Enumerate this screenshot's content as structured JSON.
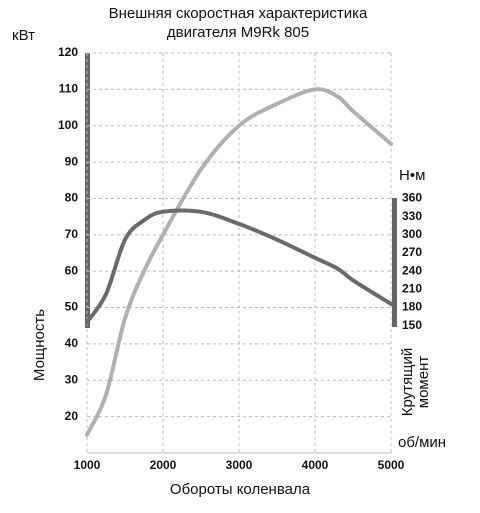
{
  "chart_data": {
    "type": "line",
    "title": [
      "Внешняя скоростная характеристика",
      "двигателя M9Rk 805"
    ],
    "y_unit": "кВт",
    "y2_unit": "Н•м",
    "x_unit": "об/мин",
    "xlabel": "Обороты коленвала",
    "ylabel": "Мощность",
    "y2label": [
      "Крутящий",
      "момент"
    ],
    "x": [
      1000,
      1250,
      1500,
      1750,
      2000,
      2500,
      3000,
      3500,
      4000,
      4300,
      4500,
      5000
    ],
    "series": [
      {
        "color": "#b0b0b0",
        "values": [
          15,
          26,
          47,
          60,
          70,
          88,
          100,
          106,
          110,
          108,
          104,
          95
        ]
      },
      {
        "color": "#6a6a6a",
        "axis": "y2",
        "values": [
          156,
          202,
          292,
          324,
          338,
          338,
          318,
          292,
          262,
          244,
          225,
          186
        ]
      }
    ],
    "xlim": [
      1000,
      5000
    ],
    "xticks": [
      1000,
      2000,
      3000,
      4000,
      5000
    ],
    "ylim": [
      10,
      120
    ],
    "yticks": [
      20,
      30,
      40,
      50,
      60,
      70,
      80,
      90,
      100,
      110,
      120
    ],
    "y2lim": [
      -60,
      600
    ],
    "y2ticks": [
      150,
      180,
      210,
      240,
      270,
      300,
      330,
      360
    ],
    "grid": true
  }
}
